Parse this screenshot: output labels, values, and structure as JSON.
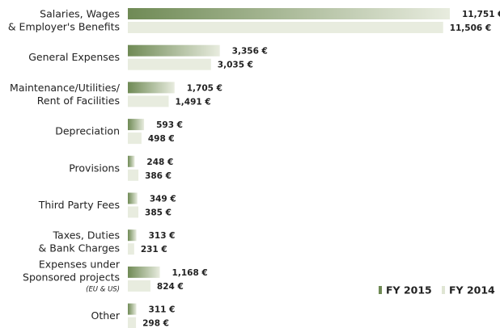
{
  "chart_data": {
    "type": "bar",
    "orientation": "horizontal",
    "categories": [
      [
        "Salaries, Wages",
        "& Employer's Benefits"
      ],
      [
        "General Expenses"
      ],
      [
        "Maintenance/Utilities/",
        "Rent of Facilities"
      ],
      [
        "Depreciation"
      ],
      [
        "Provisions"
      ],
      [
        "Third Party Fees"
      ],
      [
        "Taxes, Duties",
        "& Bank Charges"
      ],
      [
        "Expenses under",
        "Sponsored projects",
        "(EU & US)"
      ],
      [
        "Other"
      ]
    ],
    "series": [
      {
        "name": "FY 2015",
        "color": "#6f8a55",
        "values": [
          11751,
          3356,
          1705,
          593,
          248,
          349,
          313,
          1168,
          311
        ],
        "value_labels": [
          "11,751 €",
          "3,356 €",
          "1,705 €",
          "593 €",
          "248 €",
          "349 €",
          "313 €",
          "1,168 €",
          "311 €"
        ]
      },
      {
        "name": "FY 2014",
        "color": "#e8ecdf",
        "values": [
          11506,
          3035,
          1491,
          498,
          386,
          385,
          231,
          824,
          298
        ],
        "value_labels": [
          "11,506 €",
          "3,035 €",
          "1,491 €",
          "498 €",
          "386 €",
          "385 €",
          "231 €",
          "824 €",
          "298 €"
        ]
      }
    ],
    "legend": "bottom-right"
  }
}
